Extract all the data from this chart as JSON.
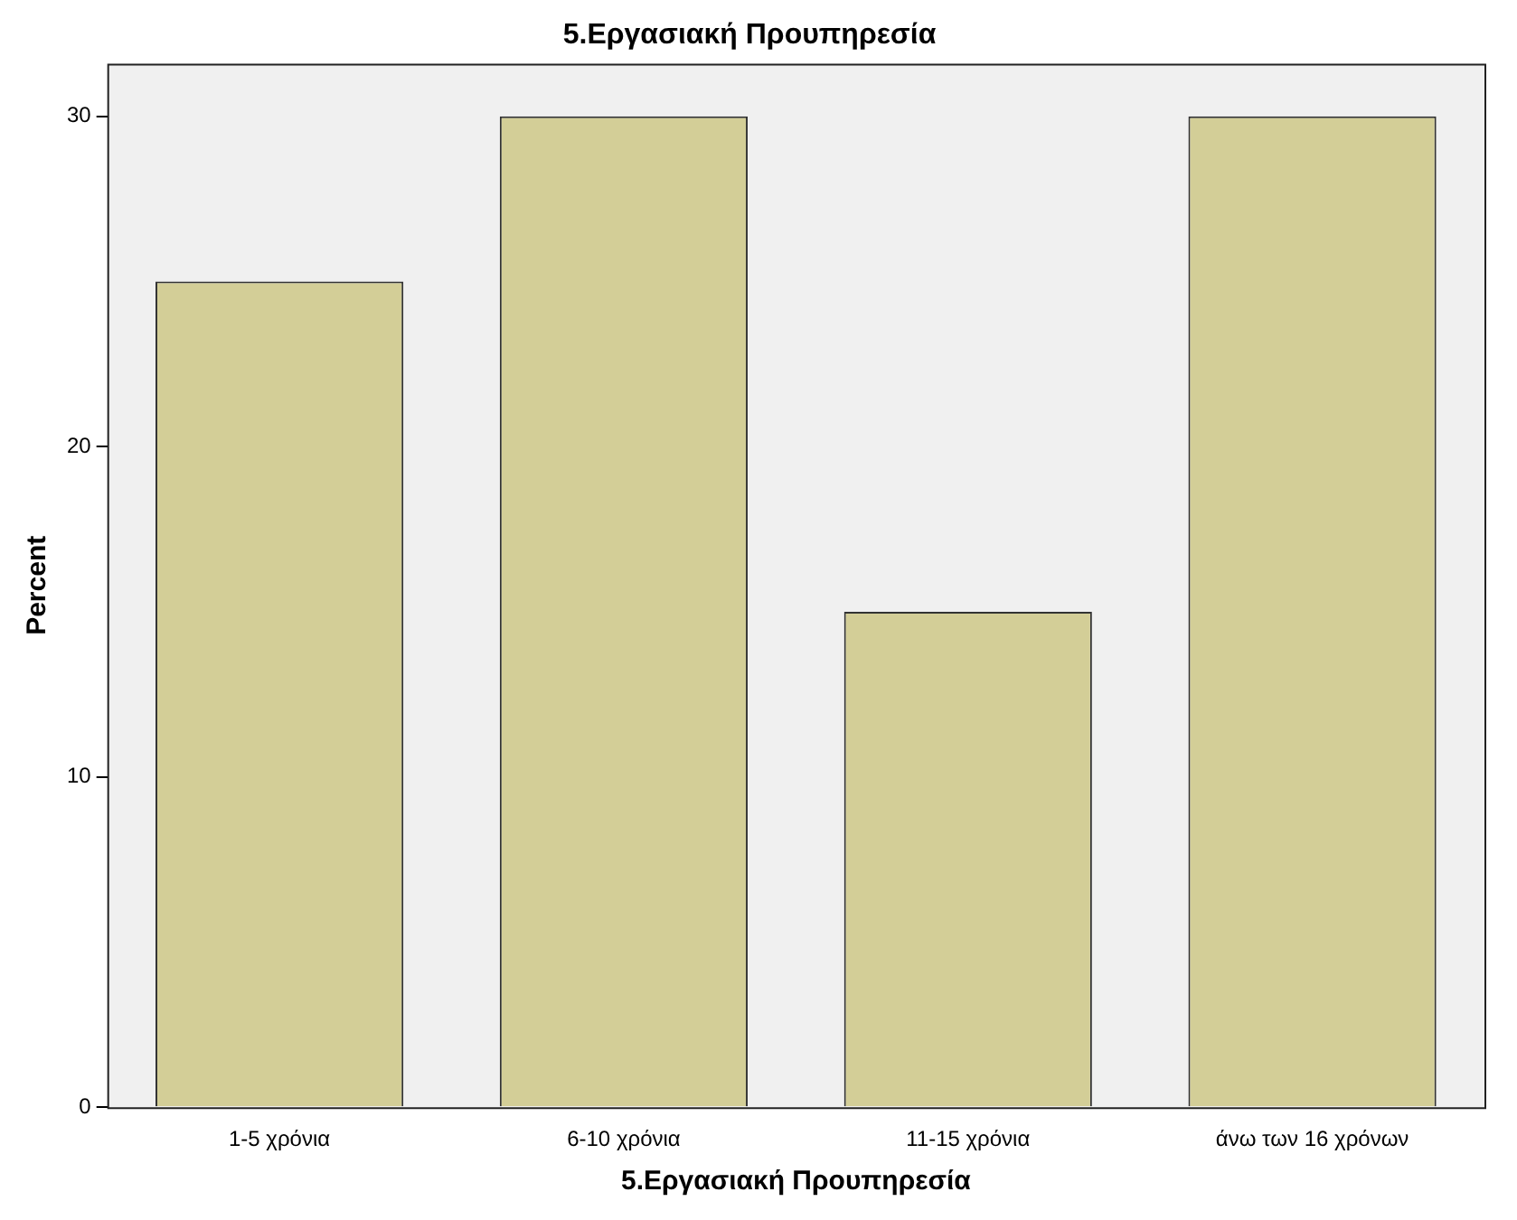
{
  "chart_data": {
    "type": "bar",
    "title": "5.Εργασιακή Προυπηρεσία",
    "xlabel": "5.Εργασιακή Προυπηρεσία",
    "ylabel": "Percent",
    "categories": [
      "1-5 χρόνια",
      "6-10 χρόνια",
      "11-15 χρόνια",
      "άνω των 16 χρόνων"
    ],
    "values": [
      25,
      30,
      15,
      30
    ],
    "color": "#d3ce97",
    "ylim": [
      0,
      31.6
    ],
    "yticks": [
      0,
      10,
      20,
      30
    ],
    "grid": false,
    "legend": false
  }
}
